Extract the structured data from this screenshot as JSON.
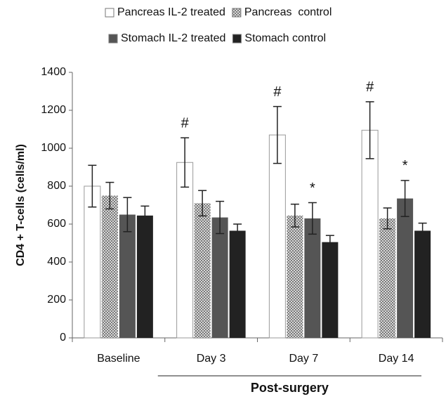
{
  "chart_data": {
    "type": "bar",
    "y_label": "CD4 + T-cells (cells/ml)",
    "categories": [
      "Baseline",
      "Day 3",
      "Day 7",
      "Day 14"
    ],
    "series": [
      {
        "name": "Pancreas IL-2 treated",
        "color": "#ffffff",
        "values": [
          800,
          925,
          1070,
          1095
        ],
        "errors": [
          110,
          130,
          150,
          150
        ]
      },
      {
        "name": "Pancreas  control",
        "color": "#a8a8a8",
        "pattern": "checker",
        "values": [
          750,
          710,
          645,
          630
        ],
        "errors": [
          70,
          67,
          60,
          55
        ]
      },
      {
        "name": "Stomach IL-2 treated",
        "color": "#555555",
        "values": [
          650,
          635,
          630,
          735
        ],
        "errors": [
          90,
          85,
          83,
          95
        ]
      },
      {
        "name": "Stomach control",
        "color": "#222222",
        "values": [
          645,
          565,
          505,
          565
        ],
        "errors": [
          50,
          35,
          35,
          40
        ]
      }
    ],
    "annotations": [
      {
        "text": "#",
        "category": "Day 3",
        "series": "Pancreas IL-2 treated"
      },
      {
        "text": "#",
        "category": "Day 7",
        "series": "Pancreas IL-2 treated"
      },
      {
        "text": "#",
        "category": "Day 14",
        "series": "Pancreas IL-2 treated"
      },
      {
        "text": "*",
        "category": "Day 7",
        "series": "Stomach IL-2 treated"
      },
      {
        "text": "*",
        "category": "Day 14",
        "series": "Stomach IL-2 treated"
      }
    ],
    "group_label": {
      "text": "Post-surgery",
      "from": "Day 3",
      "to": "Day 14"
    },
    "ylim": [
      0,
      1400
    ],
    "yticks": [
      0,
      200,
      400,
      600,
      800,
      1000,
      1200,
      1400
    ],
    "grid": false
  }
}
